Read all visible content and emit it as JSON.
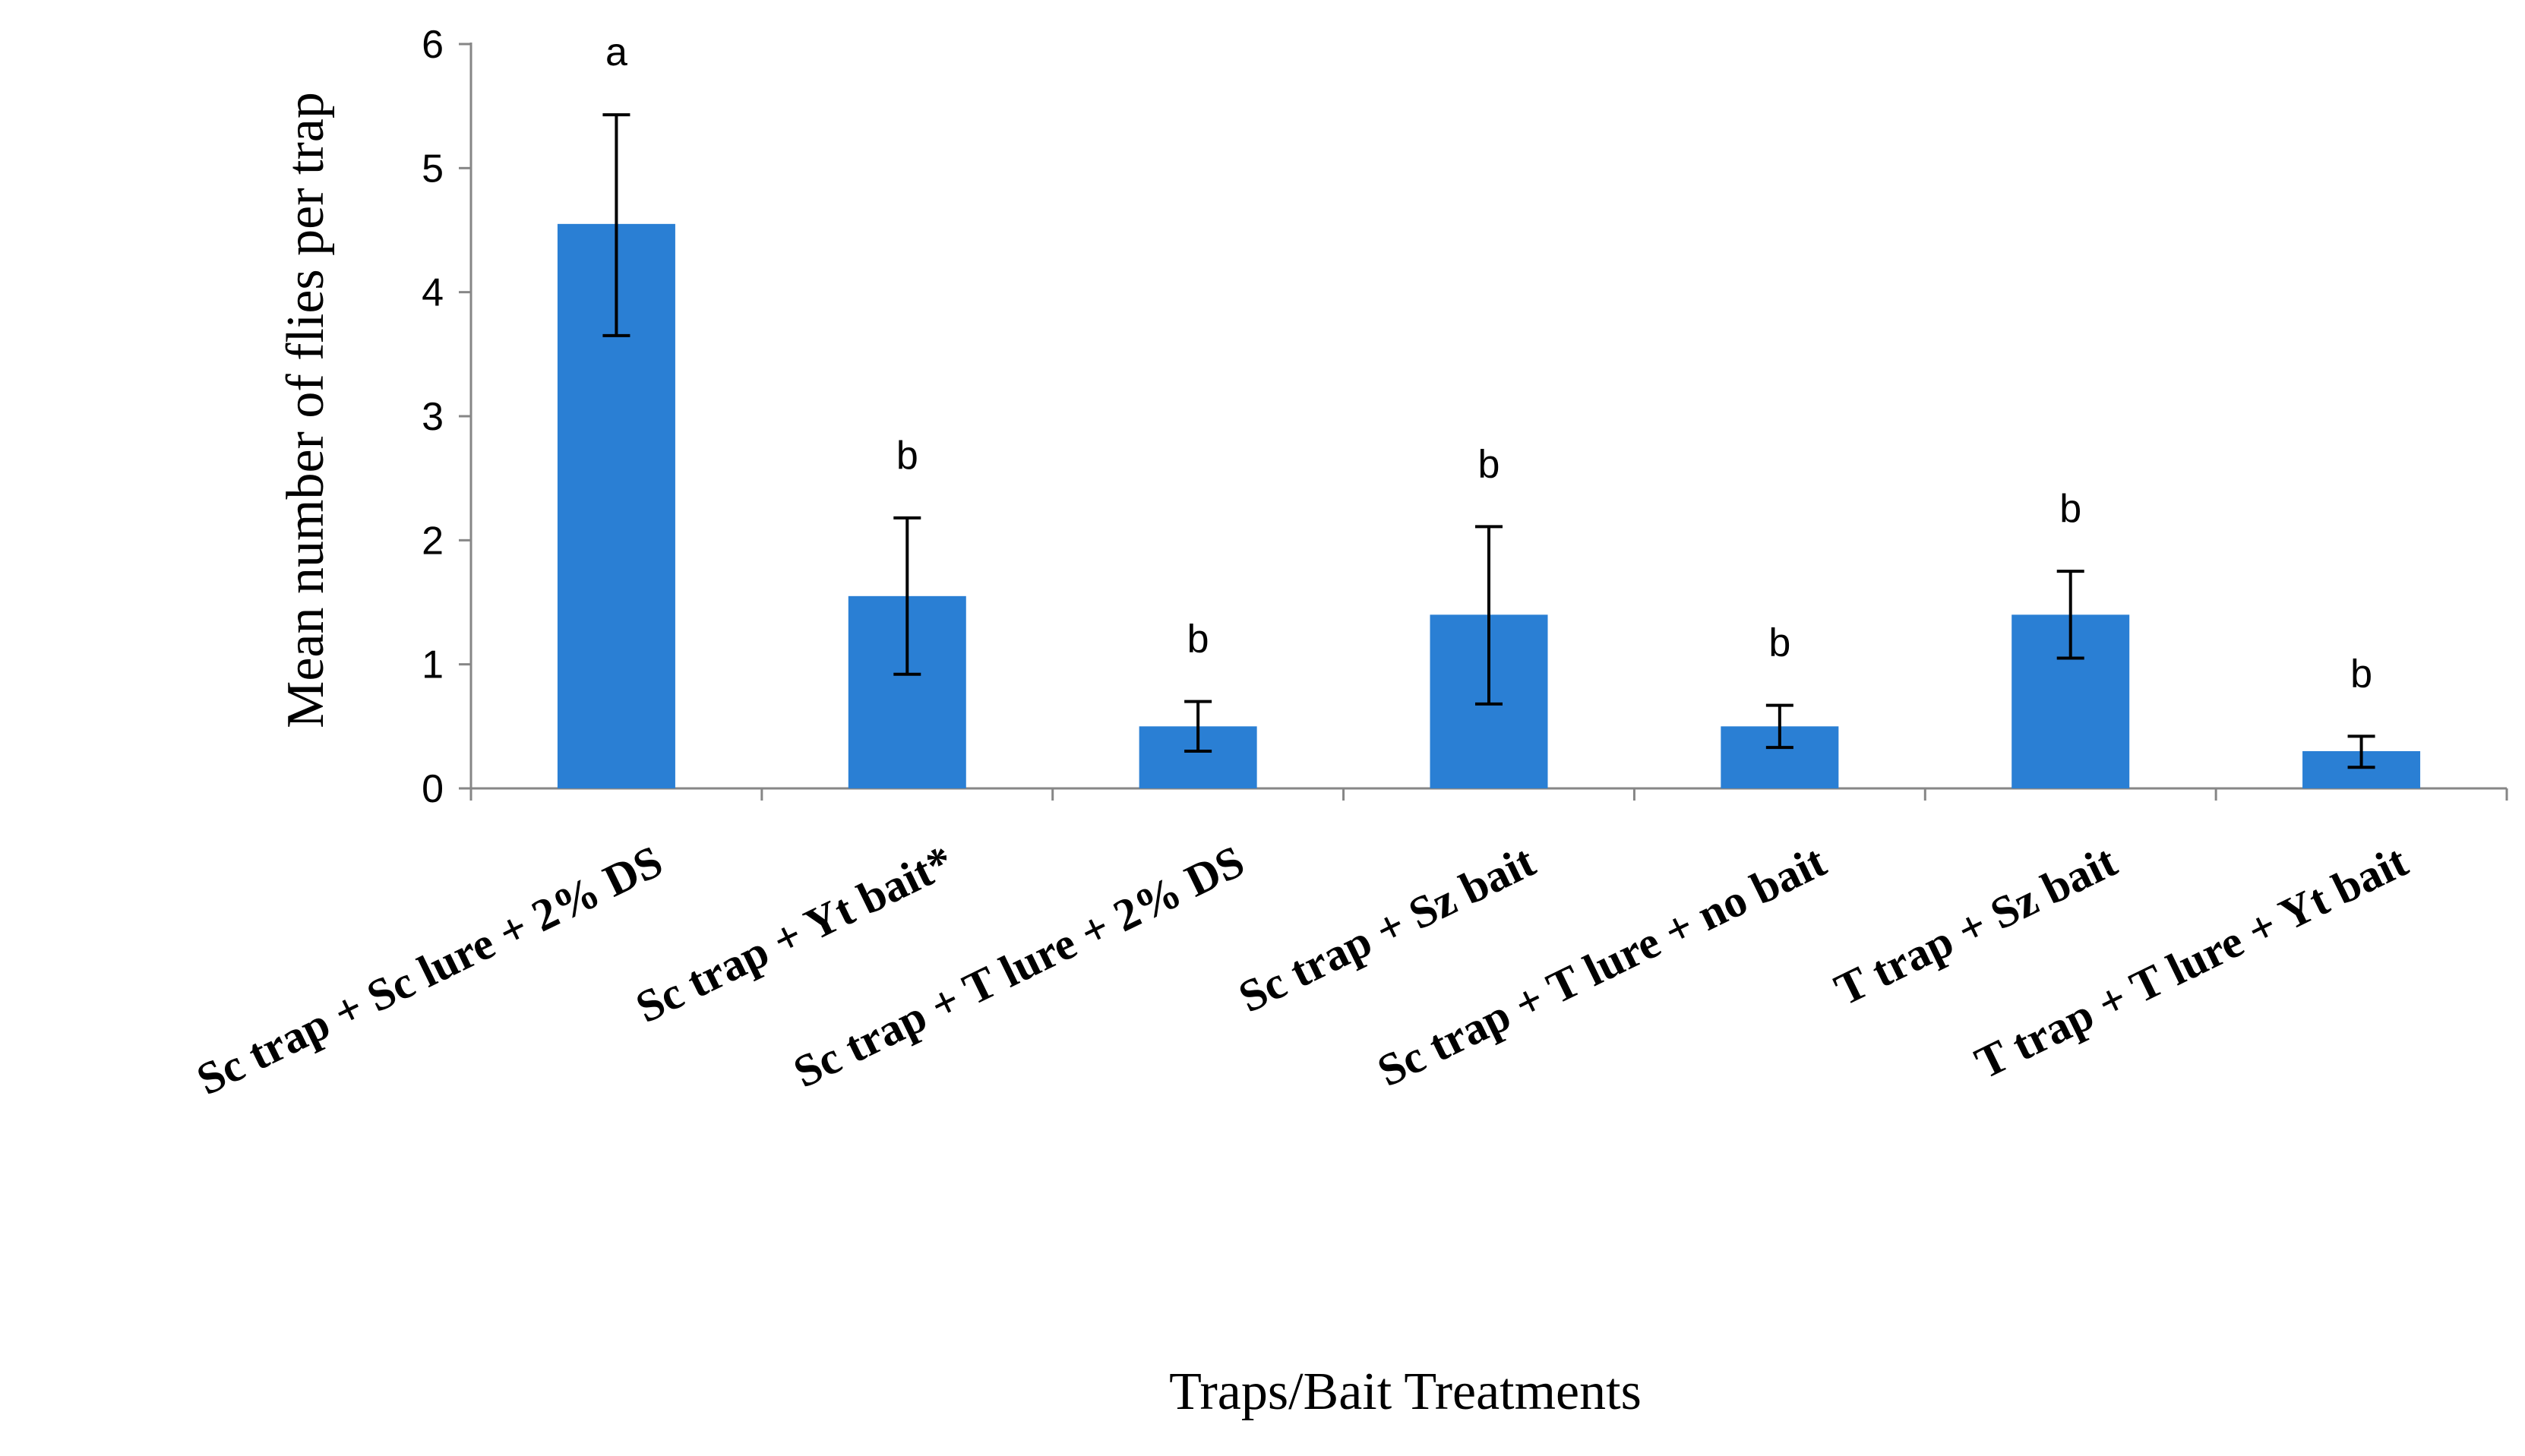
{
  "chart_data": {
    "type": "bar",
    "title": "",
    "xlabel": "Traps/Bait Treatments",
    "ylabel": "Mean number of flies per trap",
    "ylim": [
      0,
      6
    ],
    "yticks": [
      0,
      1,
      2,
      3,
      4,
      5,
      6
    ],
    "grid": false,
    "bar_color": "#2a7fd4",
    "categories": [
      "Sc trap + Sc lure + 2% DS",
      "Sc trap + Yt bait*",
      "Sc trap + T lure + 2% DS",
      "Sc trap + Sz bait",
      "Sc trap + T lure + no bait",
      "T trap + Sz bait",
      "T trap + T lure + Yt bait"
    ],
    "values": [
      4.55,
      1.55,
      0.5,
      1.4,
      0.5,
      1.4,
      0.3
    ],
    "error_low": [
      3.65,
      0.92,
      0.3,
      0.68,
      0.33,
      1.05,
      0.17
    ],
    "error_high": [
      5.43,
      2.18,
      0.7,
      2.11,
      0.67,
      1.75,
      0.42
    ],
    "significance_letters": [
      "a",
      "b",
      "b",
      "b",
      "b",
      "b",
      "b"
    ]
  }
}
